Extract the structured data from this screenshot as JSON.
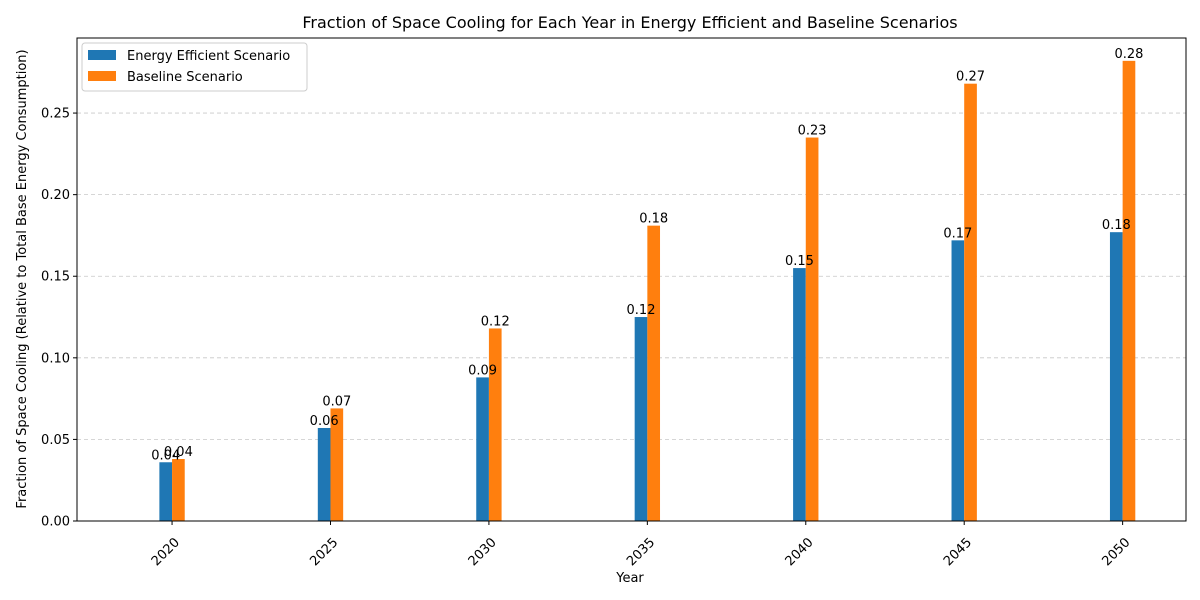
{
  "chart_data": {
    "type": "bar",
    "title": "Fraction of Space Cooling for Each Year in Energy Efficient and Baseline Scenarios",
    "xlabel": "Year",
    "ylabel": "Fraction of Space Cooling (Relative to Total Base Energy Consumption)",
    "x": [
      2020,
      2025,
      2030,
      2035,
      2040,
      2045,
      2050
    ],
    "xlim": [
      2017.0,
      2052.0
    ],
    "ylim": [
      0,
      0.296
    ],
    "yticks": [
      0.0,
      0.05,
      0.1,
      0.15,
      0.2,
      0.25
    ],
    "ytick_labels": [
      "0.00",
      "0.05",
      "0.10",
      "0.15",
      "0.20",
      "0.25"
    ],
    "bar_width_years": 0.4,
    "grid": "y-dashed",
    "legend_position": "top-left",
    "series": [
      {
        "name": "Energy Efficient Scenario",
        "color": "#1f77b4",
        "values": [
          0.036,
          0.057,
          0.088,
          0.125,
          0.155,
          0.172,
          0.177
        ],
        "labels": [
          "0.04",
          "0.06",
          "0.09",
          "0.12",
          "0.15",
          "0.17",
          "0.18"
        ]
      },
      {
        "name": "Baseline Scenario",
        "color": "#ff7f0e",
        "values": [
          0.038,
          0.069,
          0.118,
          0.181,
          0.235,
          0.268,
          0.282
        ],
        "labels": [
          "0.04",
          "0.07",
          "0.12",
          "0.18",
          "0.23",
          "0.27",
          "0.28"
        ]
      }
    ]
  }
}
